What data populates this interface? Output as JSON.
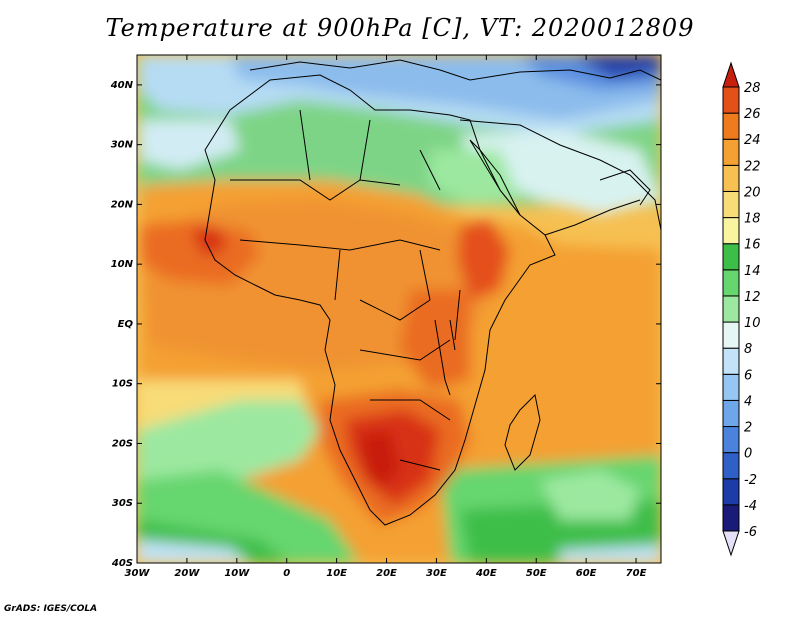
{
  "title": "Temperature at 900hPa [C], VT: 2020012809",
  "credit": "GrADS: IGES/COLA",
  "chart_data": {
    "type": "heatmap",
    "variable": "Temperature at 900hPa",
    "units": "C",
    "valid_time": "2020012809",
    "lon_range": [
      -30,
      75
    ],
    "lat_range": [
      -40,
      45
    ],
    "lon_ticks": [
      "30W",
      "20W",
      "10W",
      "0",
      "10E",
      "20E",
      "30E",
      "40E",
      "50E",
      "60E",
      "70E"
    ],
    "lat_ticks": [
      "40N",
      "30N",
      "20N",
      "10N",
      "EQ",
      "10S",
      "20S",
      "30S",
      "40S"
    ],
    "colorbar": {
      "levels": [
        -6,
        -4,
        -2,
        0,
        2,
        4,
        6,
        8,
        10,
        12,
        14,
        16,
        18,
        20,
        22,
        24,
        26,
        28
      ],
      "labels": [
        "28",
        "26",
        "24",
        "22",
        "20",
        "18",
        "16",
        "14",
        "12",
        "10",
        "8",
        "6",
        "4",
        "2",
        "0",
        "-2",
        "-4",
        "-6"
      ],
      "colors": [
        "#1a1a78",
        "#1e3ca8",
        "#2f60c8",
        "#4a82dc",
        "#6ea6ea",
        "#96c6f2",
        "#c2e2f8",
        "#e6f6f4",
        "#9ce8a0",
        "#66d66e",
        "#3cbe48",
        "#f8f4a0",
        "#f8dc78",
        "#f6c052",
        "#f4a032",
        "#ee7c1e",
        "#e4501a",
        "#d02010"
      ],
      "under_color": "#e4e0f8",
      "over_color": "#c81e0e"
    }
  }
}
